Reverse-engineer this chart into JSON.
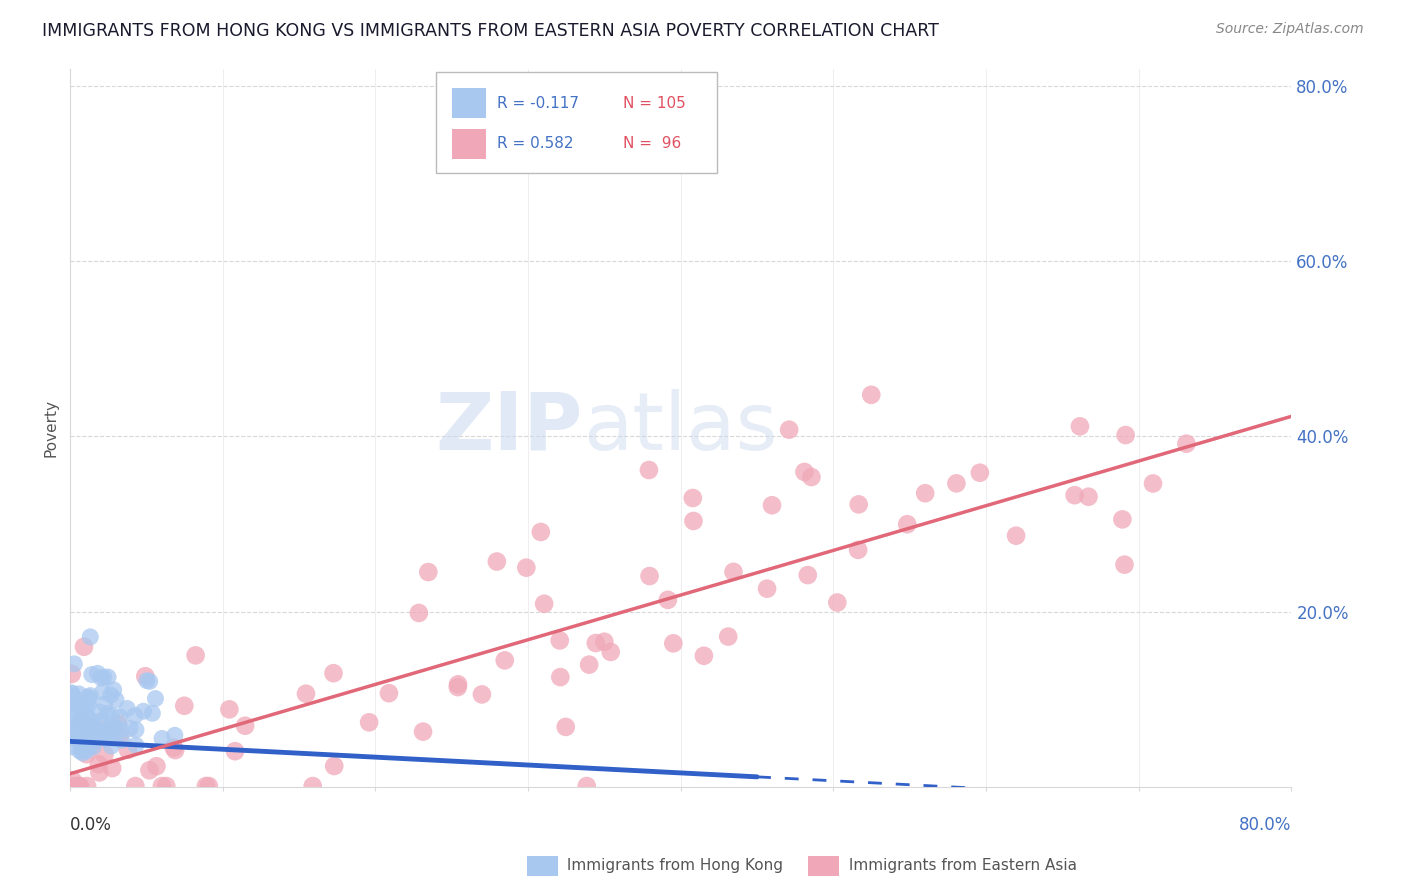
{
  "title": "IMMIGRANTS FROM HONG KONG VS IMMIGRANTS FROM EASTERN ASIA POVERTY CORRELATION CHART",
  "source": "Source: ZipAtlas.com",
  "ylabel": "Poverty",
  "ytick_labels": [
    "",
    "20.0%",
    "40.0%",
    "60.0%",
    "80.0%"
  ],
  "ytick_vals": [
    0.0,
    0.2,
    0.4,
    0.6,
    0.8
  ],
  "xlim": [
    0.0,
    0.8
  ],
  "ylim": [
    0.0,
    0.82
  ],
  "series1_color": "#a8c8f0",
  "series2_color": "#f0a8b8",
  "trend1_color": "#3060c8",
  "trend2_color": "#e06878",
  "background_color": "#ffffff",
  "grid_color": "#d8d8d8",
  "watermark_color": "#dde8f5",
  "title_color": "#1a1a2e",
  "source_color": "#888888",
  "axis_label_color": "#4472c4",
  "legend_r_color": "#4472c4",
  "legend_n_color": "#e05060"
}
